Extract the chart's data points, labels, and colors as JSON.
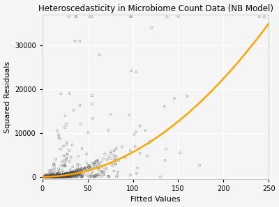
{
  "title": "Heteroscedasticity in Microbiome Count Data (NB Model)",
  "xlabel": "Fitted Values",
  "ylabel": "Squared Residuals",
  "xlim": [
    0,
    250
  ],
  "ylim": [
    -500,
    37000
  ],
  "x_ticks": [
    0,
    50,
    100,
    150,
    200,
    250
  ],
  "y_ticks": [
    0,
    10000,
    20000,
    30000
  ],
  "background_color": "#f5f5f5",
  "grid_color": "#ffffff",
  "scatter_facecolor": "none",
  "scatter_edgecolor": "#444444",
  "curve_color": "#FFA500",
  "curve_lw": 1.8,
  "title_fontsize": 8.5,
  "axis_label_fontsize": 8,
  "tick_fontsize": 7,
  "nb_theta": 1.8,
  "n_scatter": 1200,
  "random_seed": 42
}
